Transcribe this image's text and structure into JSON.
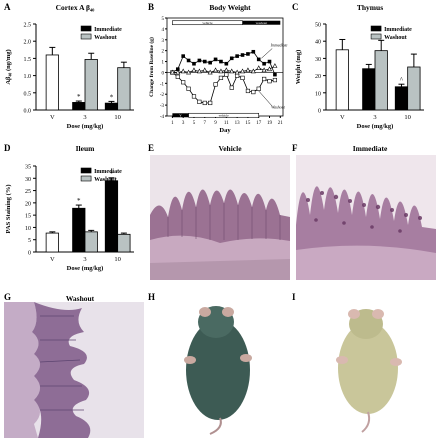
{
  "panels": {
    "A": {
      "letter": "A",
      "title": "Cortex A β₄₀"
    },
    "B": {
      "letter": "B",
      "title": "Body Weight"
    },
    "C": {
      "letter": "C",
      "title": "Thymus"
    },
    "D": {
      "letter": "D",
      "title": "Ileum"
    },
    "E": {
      "letter": "E",
      "title": "Vehicle"
    },
    "F": {
      "letter": "F",
      "title": "Immediate"
    },
    "G": {
      "letter": "G",
      "title": "Washout"
    },
    "H": {
      "letter": "H",
      "title": ""
    },
    "I": {
      "letter": "I",
      "title": ""
    }
  },
  "colors": {
    "immediate": "#000000",
    "washout": "#b9c2c2",
    "vehicle": "#ffffff",
    "histology_bg": "#e9e0e6",
    "histology_tissue": "#8f6a8a",
    "mouse_dark": "#3d5b54",
    "mouse_light": "#c9c69a"
  },
  "chart_data": [
    {
      "id": "A",
      "type": "bar",
      "title": "Cortex A β₄₀",
      "xlabel": "Dose (mg/kg)",
      "ylabel": "Aβ₄₀ (ng/mg)",
      "ylim": [
        0,
        2.5
      ],
      "yticks": [
        "0.0",
        "0.5",
        "1.0",
        "1.5",
        "2.0",
        "2.5"
      ],
      "groups": [
        "V",
        "3",
        "10"
      ],
      "legend": [
        "Immediate",
        "Washout"
      ],
      "bars": [
        {
          "group": "V",
          "series": "vehicle",
          "value": 1.6,
          "err": 0.22,
          "star": ""
        },
        {
          "group": "3",
          "series": "immediate",
          "value": 0.22,
          "err": 0.04,
          "star": "*"
        },
        {
          "group": "3",
          "series": "washout",
          "value": 1.47,
          "err": 0.18,
          "star": ""
        },
        {
          "group": "10",
          "series": "immediate",
          "value": 0.2,
          "err": 0.05,
          "star": "*"
        },
        {
          "group": "10",
          "series": "washout",
          "value": 1.23,
          "err": 0.16,
          "star": ""
        }
      ]
    },
    {
      "id": "B",
      "type": "line",
      "title": "Body Weight",
      "xlabel": "Day",
      "ylabel": "Change from Baseline (g)",
      "ylim": [
        -4,
        5
      ],
      "yticks": [
        "-4",
        "-3",
        "-2",
        "-1",
        "0",
        "1",
        "2",
        "3",
        "4",
        "5"
      ],
      "xticks": [
        "1",
        "3",
        "5",
        "7",
        "9",
        "11",
        "13",
        "15",
        "17",
        "19",
        "21"
      ],
      "top_bar_labels": [
        "vehicle",
        "washout"
      ],
      "bottom_bar_labels": [
        "Y",
        "vehicle"
      ],
      "annotations": [
        "Immediate",
        "Washout"
      ],
      "x": [
        1,
        2,
        3,
        4,
        5,
        6,
        7,
        8,
        9,
        10,
        11,
        12,
        13,
        14,
        15,
        16,
        17,
        18,
        19,
        20
      ],
      "series": [
        {
          "name": "Immediate",
          "marker": "filled-square",
          "values": [
            0,
            0.3,
            1.5,
            1.1,
            0.8,
            1.1,
            1.0,
            0.9,
            1.2,
            1.0,
            0.8,
            1.3,
            1.5,
            1.6,
            1.7,
            1.9,
            1.2,
            0.8,
            1.0,
            -0.2
          ]
        },
        {
          "name": "Washout",
          "marker": "open-square",
          "values": [
            0,
            -0.4,
            -0.9,
            -1.5,
            -2.2,
            -2.7,
            -2.8,
            -2.8,
            -1.1,
            -0.5,
            -0.2,
            -1.4,
            -0.3,
            -0.5,
            -1.7,
            -1.8,
            -1.5,
            -0.6,
            -0.8,
            -0.7
          ]
        },
        {
          "name": "Vehicle",
          "marker": "open-triangle",
          "values": [
            0,
            0.0,
            0.1,
            0.0,
            0.2,
            0.1,
            0.2,
            0.0,
            0.2,
            0.1,
            0.2,
            0.1,
            0.0,
            0.1,
            0.2,
            0.1,
            0.4,
            0.2,
            0.3,
            0.6
          ]
        }
      ]
    },
    {
      "id": "C",
      "type": "bar",
      "title": "Thymus",
      "xlabel": "Dose (mg/kg)",
      "ylabel": "Weight (mg)",
      "ylim": [
        0,
        50
      ],
      "yticks": [
        "0",
        "10",
        "20",
        "30",
        "40",
        "50"
      ],
      "groups": [
        "V",
        "3",
        "10"
      ],
      "legend": [
        "Immediate",
        "Washout"
      ],
      "bars": [
        {
          "group": "V",
          "series": "vehicle",
          "value": 35,
          "err": 6,
          "star": ""
        },
        {
          "group": "3",
          "series": "immediate",
          "value": 24,
          "err": 2.5,
          "star": ""
        },
        {
          "group": "3",
          "series": "washout",
          "value": 34.5,
          "err": 6,
          "star": ""
        },
        {
          "group": "10",
          "series": "immediate",
          "value": 13.5,
          "err": 1.5,
          "star": "^"
        },
        {
          "group": "10",
          "series": "washout",
          "value": 25,
          "err": 7.5,
          "star": ""
        }
      ]
    },
    {
      "id": "D",
      "type": "bar",
      "title": "Ileum",
      "xlabel": "Dose (mg/kg)",
      "ylabel": "PAS Staining (%)",
      "ylim": [
        0,
        35
      ],
      "yticks": [
        "0",
        "5",
        "10",
        "15",
        "20",
        "25",
        "30",
        "35"
      ],
      "groups": [
        "V",
        "3",
        "10"
      ],
      "legend": [
        "Immediate",
        "Washout"
      ],
      "bars": [
        {
          "group": "V",
          "series": "vehicle",
          "value": 7.7,
          "err": 0.5,
          "star": ""
        },
        {
          "group": "3",
          "series": "immediate",
          "value": 17.8,
          "err": 1.3,
          "star": "*"
        },
        {
          "group": "3",
          "series": "washout",
          "value": 8.2,
          "err": 0.6,
          "star": ""
        },
        {
          "group": "10",
          "series": "immediate",
          "value": 29,
          "err": 1.2,
          "star": "*"
        },
        {
          "group": "10",
          "series": "washout",
          "value": 7.2,
          "err": 0.5,
          "star": ""
        }
      ]
    }
  ]
}
